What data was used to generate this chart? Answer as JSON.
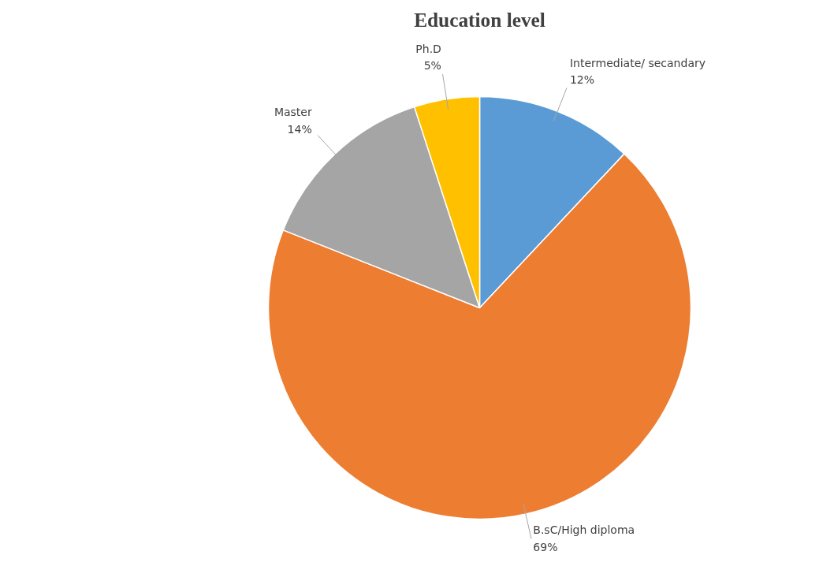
{
  "chart_data": {
    "type": "pie",
    "title": "Education level",
    "categories": [
      "Intermediate/ secandary",
      "B.sC/High diploma",
      "Master",
      "Ph.D"
    ],
    "values": [
      12,
      69,
      14,
      5
    ],
    "value_labels": [
      "12%",
      "69%",
      "14%",
      "5%"
    ],
    "colors": [
      "#5b9bd5",
      "#ed7d31",
      "#a5a5a5",
      "#ffc000"
    ]
  }
}
